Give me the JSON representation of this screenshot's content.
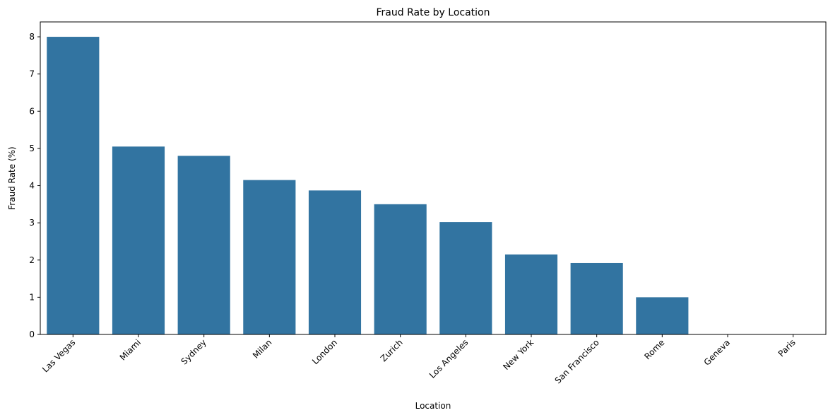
{
  "chart_data": {
    "type": "bar",
    "title": "Fraud Rate by Location",
    "xlabel": "Location",
    "ylabel": "Fraud Rate (%)",
    "categories": [
      "Las Vegas",
      "Miami",
      "Sydney",
      "Milan",
      "London",
      "Zurich",
      "Los Angeles",
      "New York",
      "San Francisco",
      "Rome",
      "Geneva",
      "Paris"
    ],
    "values": [
      8.0,
      5.05,
      4.8,
      4.15,
      3.87,
      3.5,
      3.02,
      2.15,
      1.92,
      1.0,
      0,
      0
    ],
    "ylim": [
      0,
      8.4
    ],
    "yticks": [
      0,
      1,
      2,
      3,
      4,
      5,
      6,
      7,
      8
    ],
    "grid": false,
    "legend": "none",
    "colors": {
      "bar": "#3274a1",
      "axis": "#000000"
    }
  }
}
